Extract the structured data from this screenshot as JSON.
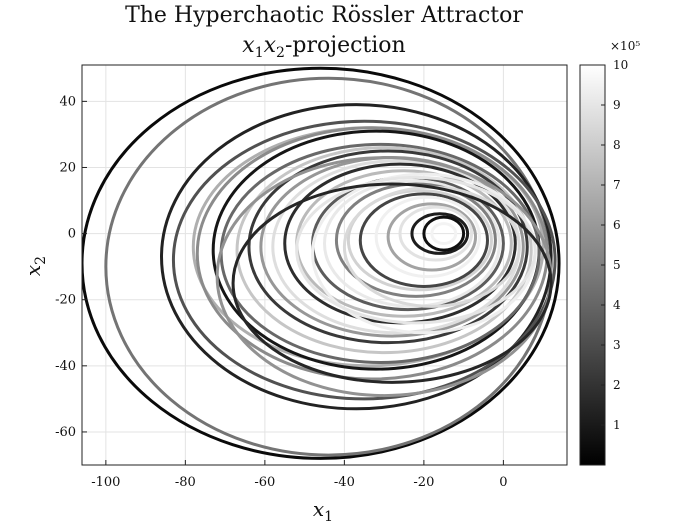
{
  "chart_data": {
    "type": "line",
    "title": "The Hyperchaotic Rössler Attractor",
    "subtitle": "x1x2-projection",
    "xlabel": "x1",
    "ylabel": "x2",
    "xlim": [
      -106,
      16
    ],
    "ylim": [
      -70,
      51
    ],
    "xticks": [
      -100,
      -80,
      -60,
      -40,
      -20,
      0
    ],
    "yticks": [
      -60,
      -40,
      -20,
      0,
      20,
      40
    ],
    "xtick_labels": [
      "-100",
      "-80",
      "-60",
      "-40",
      "-20",
      "0"
    ],
    "ytick_labels": [
      "-60",
      "-40",
      "-20",
      "0",
      "20",
      "40"
    ],
    "grid": true,
    "colormap": "gray",
    "colorbar": {
      "lim": [
        0,
        10
      ],
      "ticks": [
        1,
        2,
        3,
        4,
        5,
        6,
        7,
        8,
        9,
        10
      ],
      "tick_labels": [
        "1",
        "2",
        "3",
        "4",
        "5",
        "6",
        "7",
        "8",
        "9",
        "10"
      ],
      "exponent_label": "×10⁵"
    },
    "trajectory_loops": [
      {
        "cx": -46,
        "cy": -9,
        "rx": 60,
        "ry": 59,
        "shade": 0.0
      },
      {
        "cx": -44,
        "cy": -10,
        "rx": 56,
        "ry": 57,
        "shade": 0.45
      },
      {
        "cx": -37,
        "cy": -7,
        "rx": 49,
        "ry": 46,
        "shade": 0.1
      },
      {
        "cx": -34,
        "cy": -4,
        "rx": 44,
        "ry": 36,
        "shade": 0.7
      },
      {
        "cx": -35,
        "cy": -8,
        "rx": 48,
        "ry": 42,
        "shade": 0.3
      },
      {
        "cx": -33,
        "cy": -6,
        "rx": 44,
        "ry": 38,
        "shade": 0.55
      },
      {
        "cx": -32,
        "cy": -5,
        "rx": 41,
        "ry": 36,
        "shade": 0.05
      },
      {
        "cx": -31,
        "cy": -6,
        "rx": 40,
        "ry": 33,
        "shade": 0.4
      },
      {
        "cx": -30,
        "cy": -5,
        "rx": 37,
        "ry": 31,
        "shade": 0.8
      },
      {
        "cx": -29,
        "cy": -4,
        "rx": 35,
        "ry": 29,
        "shade": 0.2
      },
      {
        "cx": -28,
        "cy": -4,
        "rx": 33,
        "ry": 27,
        "shade": 0.6
      },
      {
        "cx": -27,
        "cy": -4,
        "rx": 31,
        "ry": 26,
        "shade": 0.9
      },
      {
        "cx": -26,
        "cy": -3,
        "rx": 29,
        "ry": 24,
        "shade": 0.15
      },
      {
        "cx": -25,
        "cy": -3,
        "rx": 27,
        "ry": 22,
        "shade": 0.75
      },
      {
        "cx": -24,
        "cy": -3,
        "rx": 24,
        "ry": 20,
        "shade": 0.35
      },
      {
        "cx": -23,
        "cy": -3,
        "rx": 22,
        "ry": 19,
        "shade": 0.95
      },
      {
        "cx": -22,
        "cy": -2,
        "rx": 20,
        "ry": 17,
        "shade": 0.5
      },
      {
        "cx": -21,
        "cy": -2,
        "rx": 18,
        "ry": 15,
        "shade": 0.85
      },
      {
        "cx": -20,
        "cy": -2,
        "rx": 16,
        "ry": 14,
        "shade": 0.25
      },
      {
        "cx": -19,
        "cy": -1,
        "rx": 13,
        "ry": 12,
        "shade": 0.98
      },
      {
        "cx": -18,
        "cy": -1,
        "rx": 11,
        "ry": 10,
        "shade": 0.65
      },
      {
        "cx": -17,
        "cy": 0,
        "rx": 9,
        "ry": 8,
        "shade": 0.92
      },
      {
        "cx": -16,
        "cy": 0,
        "rx": 7,
        "ry": 6,
        "shade": 0.08
      },
      {
        "cx": -15,
        "cy": 0,
        "rx": 5,
        "ry": 5,
        "shade": 0.02
      },
      {
        "cx": -15,
        "cy": 0,
        "rx": 3,
        "ry": 3,
        "shade": 0.99
      },
      {
        "cx": -20,
        "cy": -6,
        "rx": 28,
        "ry": 24,
        "shade": 0.97
      },
      {
        "cx": -22,
        "cy": -5,
        "rx": 30,
        "ry": 22,
        "shade": 0.93
      },
      {
        "cx": -18,
        "cy": -4,
        "rx": 22,
        "ry": 18,
        "shade": 0.88
      },
      {
        "cx": -30,
        "cy": -13,
        "rx": 42,
        "ry": 36,
        "shade": 0.58
      },
      {
        "cx": -28,
        "cy": -15,
        "rx": 40,
        "ry": 30,
        "shade": 0.12
      }
    ]
  }
}
